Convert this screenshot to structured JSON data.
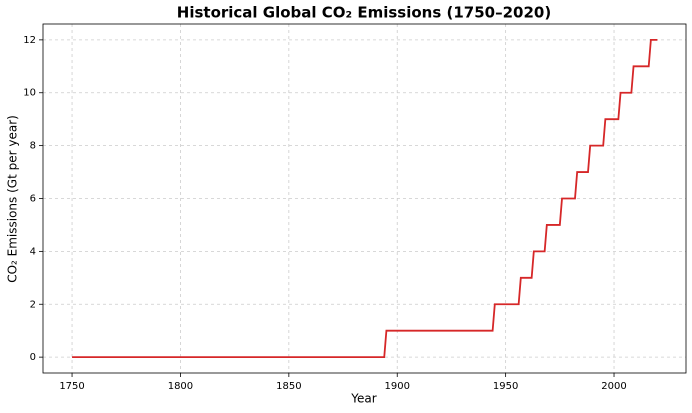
{
  "chart_data": {
    "type": "line",
    "title": "Historical Global CO₂ Emissions (1750–2020)",
    "x_label": "Year",
    "y_label": "CO₂ Emissions (Gt per year)",
    "x": [
      1750,
      1894,
      1895,
      1944,
      1945,
      1956,
      1957,
      1962,
      1963,
      1968,
      1969,
      1975,
      1976,
      1982,
      1983,
      1988,
      1989,
      1995,
      1996,
      2002,
      2003,
      2008,
      2009,
      2016,
      2017,
      2020
    ],
    "values": [
      0,
      0,
      1,
      1,
      2,
      2,
      3,
      3,
      4,
      4,
      5,
      5,
      6,
      6,
      7,
      7,
      8,
      8,
      9,
      9,
      10,
      10,
      11,
      11,
      12,
      12
    ],
    "color": "#d62728",
    "xlim": [
      1736.6,
      2033.2
    ],
    "xticks": [
      1750,
      1800,
      1850,
      1900,
      1950,
      2000
    ],
    "ylim": [
      -0.6,
      12.6
    ],
    "yticks": [
      0,
      2,
      4,
      6,
      8,
      10,
      12
    ],
    "grid": true
  }
}
